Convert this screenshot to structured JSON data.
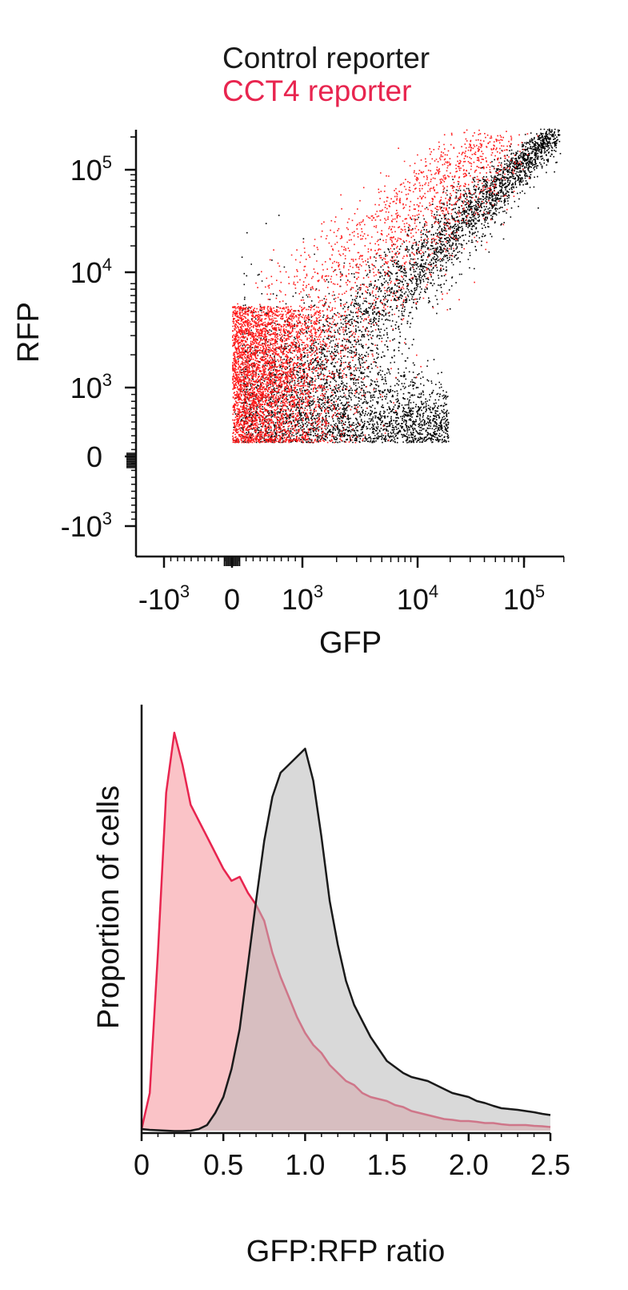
{
  "legend": {
    "control": {
      "label": "Control reporter",
      "color": "#1a1a1a"
    },
    "cct4": {
      "label": "CCT4 reporter",
      "color": "#e8254f"
    }
  },
  "chart_data": [
    {
      "type": "scatter",
      "xlabel": "GFP",
      "ylabel": "RFP",
      "x_scale": "biexponential",
      "y_scale": "biexponential",
      "x_ticks": [
        {
          "value": -1000,
          "base": "-10",
          "exp": "3"
        },
        {
          "value": 0,
          "base": "0",
          "exp": ""
        },
        {
          "value": 1000,
          "base": "10",
          "exp": "3"
        },
        {
          "value": 10000,
          "base": "10",
          "exp": "4"
        },
        {
          "value": 100000,
          "base": "10",
          "exp": "5"
        }
      ],
      "y_ticks": [
        {
          "value": 100000,
          "base": "10",
          "exp": "5"
        },
        {
          "value": 10000,
          "base": "10",
          "exp": "4"
        },
        {
          "value": 1000,
          "base": "10",
          "exp": "3"
        },
        {
          "value": 0,
          "base": "0",
          "exp": ""
        },
        {
          "value": -1000,
          "base": "-10",
          "exp": "3"
        }
      ],
      "series": [
        {
          "name": "Control reporter",
          "color": "#000000"
        },
        {
          "name": "CCT4 reporter",
          "color": "#ff1a1a"
        }
      ]
    },
    {
      "type": "area",
      "xlabel": "GFP:RFP ratio",
      "ylabel": "Proportion of cells",
      "xlim": [
        0,
        2.5
      ],
      "ylim": [
        0,
        1.05
      ],
      "x_ticks": [
        "0",
        "0.5",
        "1.0",
        "1.5",
        "2.0",
        "2.5"
      ],
      "x": [
        0,
        0.05,
        0.1,
        0.15,
        0.2,
        0.25,
        0.3,
        0.35,
        0.4,
        0.45,
        0.5,
        0.55,
        0.6,
        0.65,
        0.7,
        0.75,
        0.8,
        0.85,
        0.9,
        0.95,
        1.0,
        1.05,
        1.1,
        1.15,
        1.2,
        1.25,
        1.3,
        1.35,
        1.4,
        1.45,
        1.5,
        1.55,
        1.6,
        1.65,
        1.7,
        1.75,
        1.8,
        1.85,
        1.9,
        1.95,
        2.0,
        2.05,
        2.1,
        2.15,
        2.2,
        2.25,
        2.3,
        2.35,
        2.4,
        2.45,
        2.5
      ],
      "series": [
        {
          "name": "CCT4 reporter",
          "line_color": "#e8254f",
          "fill_color": "#f9b8bd",
          "values": [
            0.01,
            0.1,
            0.45,
            0.85,
            1.0,
            0.92,
            0.82,
            0.78,
            0.74,
            0.7,
            0.66,
            0.63,
            0.64,
            0.6,
            0.57,
            0.53,
            0.45,
            0.39,
            0.34,
            0.29,
            0.25,
            0.22,
            0.2,
            0.17,
            0.15,
            0.13,
            0.12,
            0.1,
            0.09,
            0.085,
            0.08,
            0.07,
            0.065,
            0.055,
            0.05,
            0.045,
            0.04,
            0.035,
            0.033,
            0.03,
            0.03,
            0.028,
            0.025,
            0.025,
            0.022,
            0.02,
            0.02,
            0.02,
            0.018,
            0.017,
            0.015
          ]
        },
        {
          "name": "Control reporter",
          "line_color": "#1a1a1a",
          "fill_color": "#b9b9b9",
          "values": [
            0.01,
            0.008,
            0.007,
            0.006,
            0.005,
            0.005,
            0.006,
            0.01,
            0.02,
            0.05,
            0.09,
            0.16,
            0.26,
            0.42,
            0.58,
            0.73,
            0.84,
            0.9,
            0.92,
            0.94,
            0.96,
            0.88,
            0.74,
            0.58,
            0.47,
            0.38,
            0.32,
            0.28,
            0.24,
            0.21,
            0.18,
            0.165,
            0.15,
            0.14,
            0.135,
            0.13,
            0.12,
            0.11,
            0.1,
            0.095,
            0.09,
            0.08,
            0.075,
            0.068,
            0.062,
            0.06,
            0.058,
            0.055,
            0.052,
            0.048,
            0.045
          ]
        }
      ]
    }
  ]
}
